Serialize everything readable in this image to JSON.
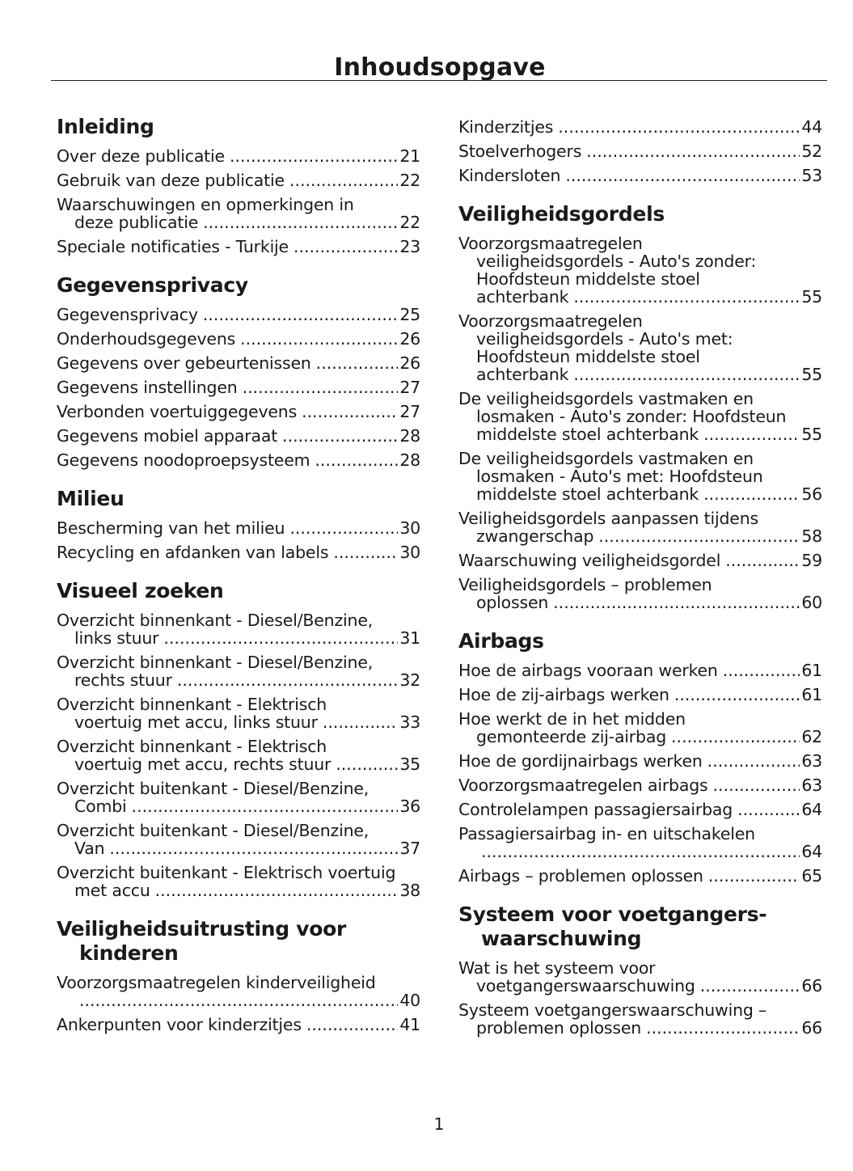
{
  "title": "Inhoudsopgave",
  "page_number": "1",
  "columns": [
    [
      {
        "heading": [
          "Inleiding"
        ],
        "entries": [
          {
            "lines": [
              "Over deze publicatie"
            ],
            "page": "21"
          },
          {
            "lines": [
              "Gebruik van deze publicatie"
            ],
            "page": "22"
          },
          {
            "lines": [
              "Waarschuwingen en opmerkingen in",
              "deze publicatie"
            ],
            "page": "22"
          },
          {
            "lines": [
              "Speciale notificaties - Turkije"
            ],
            "page": "23"
          }
        ]
      },
      {
        "heading": [
          "Gegevensprivacy"
        ],
        "entries": [
          {
            "lines": [
              "Gegevensprivacy"
            ],
            "page": "25"
          },
          {
            "lines": [
              "Onderhoudsgegevens"
            ],
            "page": "26"
          },
          {
            "lines": [
              "Gegevens over gebeurtenissen"
            ],
            "page": "26"
          },
          {
            "lines": [
              "Gegevens instellingen"
            ],
            "page": "27"
          },
          {
            "lines": [
              "Verbonden voertuiggegevens"
            ],
            "page": "27"
          },
          {
            "lines": [
              "Gegevens mobiel apparaat"
            ],
            "page": "28"
          },
          {
            "lines": [
              "Gegevens noodoproepsysteem"
            ],
            "page": "28"
          }
        ]
      },
      {
        "heading": [
          "Milieu"
        ],
        "entries": [
          {
            "lines": [
              "Bescherming van het milieu"
            ],
            "page": "30"
          },
          {
            "lines": [
              "Recycling en afdanken van labels"
            ],
            "page": "30"
          }
        ]
      },
      {
        "heading": [
          "Visueel zoeken"
        ],
        "entries": [
          {
            "lines": [
              "Overzicht binnenkant - Diesel/Benzine,",
              "links stuur"
            ],
            "page": "31"
          },
          {
            "lines": [
              "Overzicht binnenkant - Diesel/Benzine,",
              "rechts stuur"
            ],
            "page": "32"
          },
          {
            "lines": [
              "Overzicht binnenkant - Elektrisch",
              "voertuig met accu, links stuur"
            ],
            "page": "33"
          },
          {
            "lines": [
              "Overzicht binnenkant - Elektrisch",
              "voertuig met accu, rechts stuur"
            ],
            "page": "35"
          },
          {
            "lines": [
              "Overzicht buitenkant - Diesel/Benzine,",
              "Combi"
            ],
            "page": "36"
          },
          {
            "lines": [
              "Overzicht buitenkant - Diesel/Benzine,",
              "Van"
            ],
            "page": "37"
          },
          {
            "lines": [
              "Overzicht buitenkant - Elektrisch voertuig",
              "met accu"
            ],
            "page": "38"
          }
        ]
      },
      {
        "heading": [
          "Veiligheidsuitrusting voor",
          "kinderen"
        ],
        "entries": [
          {
            "lines": [
              "Voorzorgsmaatregelen kinderveiligheid",
              ""
            ],
            "page": "40"
          },
          {
            "lines": [
              "Ankerpunten voor kinderzitjes"
            ],
            "page": "41"
          }
        ]
      }
    ],
    [
      {
        "heading": [],
        "entries": [
          {
            "lines": [
              "Kinderzitjes"
            ],
            "page": "44"
          },
          {
            "lines": [
              "Stoelverhogers"
            ],
            "page": "52"
          },
          {
            "lines": [
              "Kindersloten"
            ],
            "page": "53"
          }
        ]
      },
      {
        "heading": [
          "Veiligheidsgordels"
        ],
        "entries": [
          {
            "lines": [
              "Voorzorgsmaatregelen",
              "veiligheidsgordels - Auto's zonder:",
              "Hoofdsteun middelste stoel",
              "achterbank"
            ],
            "page": "55"
          },
          {
            "lines": [
              "Voorzorgsmaatregelen",
              "veiligheidsgordels - Auto's met:",
              "Hoofdsteun middelste stoel",
              "achterbank"
            ],
            "page": "55"
          },
          {
            "lines": [
              "De veiligheidsgordels vastmaken en",
              "losmaken - Auto's zonder: Hoofdsteun",
              "middelste stoel achterbank"
            ],
            "page": "55"
          },
          {
            "lines": [
              "De veiligheidsgordels vastmaken en",
              "losmaken - Auto's met: Hoofdsteun",
              "middelste stoel achterbank"
            ],
            "page": "56"
          },
          {
            "lines": [
              "Veiligheidsgordels aanpassen tijdens",
              "zwangerschap"
            ],
            "page": "58"
          },
          {
            "lines": [
              "Waarschuwing veiligheidsgordel"
            ],
            "page": "59"
          },
          {
            "lines": [
              "Veiligheidsgordels – problemen",
              "oplossen"
            ],
            "page": "60"
          }
        ]
      },
      {
        "heading": [
          "Airbags"
        ],
        "entries": [
          {
            "lines": [
              "Hoe de airbags vooraan werken"
            ],
            "page": "61"
          },
          {
            "lines": [
              "Hoe de zij-airbags werken"
            ],
            "page": "61"
          },
          {
            "lines": [
              "Hoe werkt de in het midden",
              "gemonteerde zij-airbag"
            ],
            "page": "62"
          },
          {
            "lines": [
              "Hoe de gordijnairbags werken"
            ],
            "page": "63"
          },
          {
            "lines": [
              "Voorzorgsmaatregelen airbags"
            ],
            "page": "63"
          },
          {
            "lines": [
              "Controlelampen passagiersairbag"
            ],
            "page": "64"
          },
          {
            "lines": [
              "Passagiersairbag in- en uitschakelen",
              ""
            ],
            "page": "64"
          },
          {
            "lines": [
              "Airbags – problemen oplossen"
            ],
            "page": "65"
          }
        ]
      },
      {
        "heading": [
          "Systeem voor voetgangers-",
          "waarschuwing"
        ],
        "entries": [
          {
            "lines": [
              "Wat is het systeem voor",
              "voetgangerswaarschuwing"
            ],
            "page": "66"
          },
          {
            "lines": [
              "Systeem voetgangerswaarschuwing –",
              "problemen oplossen"
            ],
            "page": "66"
          }
        ]
      }
    ]
  ]
}
